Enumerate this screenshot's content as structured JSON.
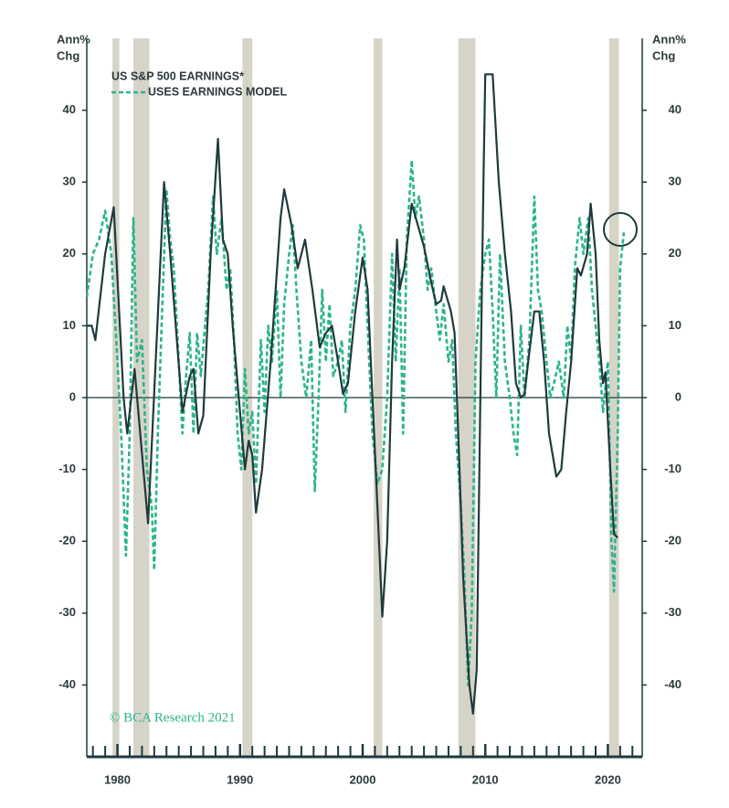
{
  "chart_data": {
    "type": "line",
    "ylabel": [
      "Ann%",
      "Chg"
    ],
    "y2label": [
      "Ann%",
      "Chg"
    ],
    "copyright": "© BCA Research 2021",
    "xlim": [
      1977.5,
      2022.8
    ],
    "xticks": [
      1980,
      1990,
      2000,
      2010,
      2020
    ],
    "xminor_ticks": [
      1978,
      1979,
      1980,
      1981,
      1982,
      1983,
      1984,
      1985,
      1986,
      1987,
      1988,
      1989,
      1990,
      1991,
      1992,
      1993,
      1994,
      1995,
      1996,
      1997,
      1998,
      1999,
      2000,
      2001,
      2002,
      2003,
      2004,
      2005,
      2006,
      2007,
      2008,
      2009,
      2010,
      2011,
      2012,
      2013,
      2014,
      2015,
      2016,
      2017,
      2018,
      2019,
      2020,
      2021,
      2022
    ],
    "ylim": [
      -50,
      50
    ],
    "yticks": [
      -40,
      -30,
      -20,
      -10,
      0,
      10,
      20,
      30,
      40
    ],
    "y2lim": [
      -50,
      50
    ],
    "y2ticks": [
      -40,
      -30,
      -20,
      -10,
      0,
      10,
      20,
      30,
      40
    ],
    "recessions": [
      [
        1979.6,
        1980.15
      ],
      [
        1981.3,
        1982.6
      ],
      [
        1990.2,
        1991.0
      ],
      [
        2000.9,
        2001.6
      ],
      [
        2007.8,
        2009.2
      ],
      [
        2020.1,
        2020.9
      ]
    ],
    "recession_color": "#d6d4c8",
    "series": [
      {
        "name": "US S&P 500 EARNINGS*",
        "color": "#1f3a3d",
        "dash": false,
        "x": [
          1977.5,
          1977.9,
          1978.2,
          1979.0,
          1979.7,
          1980.5,
          1980.8,
          1981.4,
          1982.5,
          1983.8,
          1984.3,
          1985.3,
          1985.9,
          1986.2,
          1986.6,
          1987.0,
          1987.6,
          1988.2,
          1988.6,
          1989.0,
          1989.4,
          1990.4,
          1990.7,
          1991.0,
          1991.3,
          1991.8,
          1992.5,
          1993.3,
          1993.6,
          1994.2,
          1994.7,
          1995.3,
          1995.9,
          1996.5,
          1997.0,
          1997.5,
          1998.0,
          1998.4,
          1998.8,
          1999.4,
          2000.0,
          2000.4,
          2000.8,
          2001.2,
          2001.6,
          2002.0,
          2002.4,
          2002.8,
          2003.0,
          2003.4,
          2003.8,
          2004.0,
          2004.5,
          2005.0,
          2005.6,
          2006.0,
          2006.4,
          2006.6,
          2007.2,
          2007.5,
          2007.9,
          2008.2,
          2008.7,
          2009.0,
          2009.3,
          2009.6,
          2009.85,
          2010.0,
          2010.6,
          2011.1,
          2011.6,
          2012.1,
          2012.5,
          2012.9,
          2013.2,
          2013.5,
          2014.0,
          2014.4,
          2014.8,
          2015.2,
          2015.8,
          2016.2,
          2016.6,
          2017.0,
          2017.5,
          2017.8,
          2018.3,
          2018.6,
          2019.0,
          2019.3,
          2019.6,
          2019.8,
          2020.2,
          2020.5,
          2020.8
        ],
        "values": [
          10,
          10,
          8,
          20,
          26.5,
          0,
          -5,
          4,
          -17.5,
          30,
          20,
          -2,
          3,
          4,
          -5,
          -2.5,
          20,
          36,
          22,
          20,
          10,
          -10,
          -6,
          -8,
          -16,
          -10,
          5,
          25,
          29,
          24,
          18,
          22,
          15,
          7,
          9,
          10,
          5,
          0.5,
          2,
          12,
          19.5,
          15,
          0,
          -15,
          -30.5,
          -20,
          5,
          22,
          15,
          18,
          24,
          27,
          24,
          21,
          16,
          13,
          13.5,
          15.5,
          12,
          9,
          -10,
          -25,
          -40,
          -44,
          -38,
          0,
          30,
          45,
          45,
          30,
          20,
          12,
          2,
          0,
          0.5,
          5,
          12,
          12,
          5,
          -5,
          -11,
          -10,
          -2,
          5,
          18,
          17,
          20,
          27,
          20,
          8,
          2,
          3.5,
          -10,
          -19,
          -19.5
        ]
      },
      {
        "name": "USES EARNINGS MODEL",
        "color": "#2bb58a",
        "dash": true,
        "x": [
          1977.5,
          1978.0,
          1978.5,
          1979.0,
          1979.5,
          1980.0,
          1980.3,
          1980.7,
          1981.0,
          1981.3,
          1981.6,
          1982.0,
          1982.4,
          1982.8,
          1983.0,
          1983.3,
          1983.6,
          1984.0,
          1984.3,
          1984.6,
          1985.0,
          1985.3,
          1985.6,
          1985.9,
          1986.2,
          1986.5,
          1986.8,
          1987.1,
          1987.4,
          1987.8,
          1988.1,
          1988.5,
          1988.9,
          1989.2,
          1989.5,
          1989.8,
          1990.1,
          1990.4,
          1990.7,
          1991.0,
          1991.3,
          1991.7,
          1992.0,
          1992.3,
          1992.6,
          1993.0,
          1993.3,
          1993.6,
          1994.0,
          1994.3,
          1994.6,
          1995.0,
          1995.4,
          1995.8,
          1996.1,
          1996.4,
          1996.7,
          1997.0,
          1997.3,
          1997.6,
          1998.0,
          1998.3,
          1998.6,
          1999.0,
          1999.4,
          1999.8,
          2000.1,
          2000.4,
          2000.8,
          2001.2,
          2001.6,
          2002.0,
          2002.4,
          2002.7,
          2003.0,
          2003.3,
          2003.6,
          2004.0,
          2004.3,
          2004.6,
          2005.0,
          2005.3,
          2005.6,
          2006.0,
          2006.3,
          2006.6,
          2007.0,
          2007.3,
          2007.6,
          2008.0,
          2008.3,
          2008.6,
          2008.9,
          2009.2,
          2009.6,
          2010.0,
          2010.3,
          2010.6,
          2010.9,
          2011.2,
          2011.6,
          2012.0,
          2012.3,
          2012.6,
          2012.9,
          2013.2,
          2013.6,
          2014.0,
          2014.3,
          2014.6,
          2015.0,
          2015.3,
          2015.6,
          2016.0,
          2016.4,
          2016.7,
          2017.0,
          2017.3,
          2017.7,
          2018.0,
          2018.4,
          2018.7,
          2019.0,
          2019.3,
          2019.6,
          2020.0,
          2020.3,
          2020.5,
          2020.8,
          2021.0,
          2021.3
        ],
        "values": [
          14,
          20,
          22,
          26,
          20,
          5,
          -5,
          -22,
          -5,
          25,
          5,
          8,
          -10,
          -15,
          -24,
          -5,
          10,
          29,
          22,
          18,
          5,
          -5,
          3,
          9,
          -5,
          9,
          3,
          9,
          15,
          28,
          20,
          25,
          15,
          18,
          8,
          -5,
          -10,
          4,
          -5,
          -2,
          -12,
          8,
          -2,
          10,
          5,
          15,
          0,
          13,
          20,
          24,
          15,
          5,
          0,
          8,
          -13,
          0,
          15,
          5,
          13,
          3,
          5,
          8,
          -2,
          10,
          15,
          24,
          22,
          10,
          -5,
          -12,
          -10,
          0,
          20,
          5,
          18,
          -5,
          22,
          33,
          25,
          28,
          22,
          15,
          18,
          12,
          8,
          13,
          5,
          8,
          -5,
          -15,
          -25,
          -40,
          -30,
          5,
          15,
          20,
          22,
          12,
          0,
          20,
          5,
          0,
          -5,
          -8,
          10,
          0,
          8,
          28,
          15,
          12,
          5,
          0,
          2,
          5,
          0,
          10,
          5,
          18,
          25,
          20,
          25,
          15,
          10,
          5,
          -2,
          5,
          -20,
          -27,
          -5,
          18,
          23
        ]
      }
    ]
  }
}
